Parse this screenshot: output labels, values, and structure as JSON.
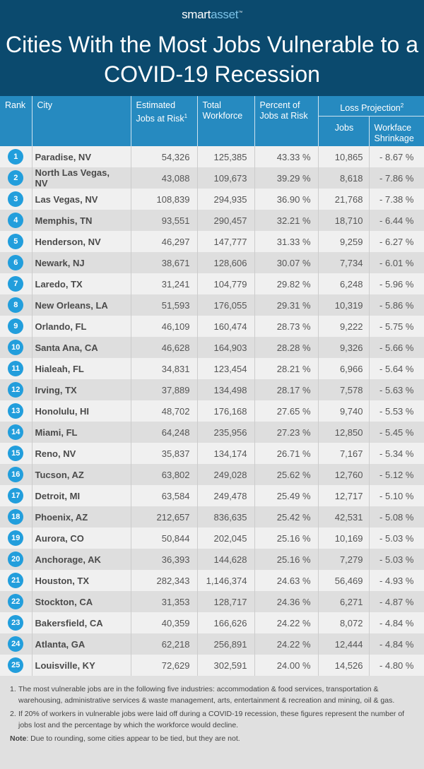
{
  "brand": {
    "left": "smart",
    "right": "asset",
    "tm": "™"
  },
  "title": "Cities With the Most Jobs Vulnerable to a COVID-19 Recession",
  "colors": {
    "header_bg": "#0b4a6e",
    "table_header_bg": "#268ac0",
    "rank_badge": "#229edc"
  },
  "columns": {
    "rank": "Rank",
    "city": "City",
    "est": "Estimated Jobs at Risk",
    "est_sup": "1",
    "total": "Total Workforce",
    "pct": "Percent of Jobs at Risk",
    "loss": "Loss Projection",
    "loss_sup": "2",
    "jobs": "Jobs",
    "shrink": "Workface Shrinkage"
  },
  "rows": [
    {
      "rank": "1",
      "city": "Paradise, NV",
      "est": "54,326",
      "total": "125,385",
      "pct": "43.33 %",
      "jobs": "10,865",
      "shrink": "- 8.67 %"
    },
    {
      "rank": "2",
      "city": "North Las Vegas, NV",
      "est": "43,088",
      "total": "109,673",
      "pct": "39.29 %",
      "jobs": "8,618",
      "shrink": "- 7.86 %"
    },
    {
      "rank": "3",
      "city": "Las Vegas, NV",
      "est": "108,839",
      "total": "294,935",
      "pct": "36.90 %",
      "jobs": "21,768",
      "shrink": "- 7.38 %"
    },
    {
      "rank": "4",
      "city": "Memphis, TN",
      "est": "93,551",
      "total": "290,457",
      "pct": "32.21 %",
      "jobs": "18,710",
      "shrink": "- 6.44 %"
    },
    {
      "rank": "5",
      "city": "Henderson, NV",
      "est": "46,297",
      "total": "147,777",
      "pct": "31.33 %",
      "jobs": "9,259",
      "shrink": "- 6.27 %"
    },
    {
      "rank": "6",
      "city": "Newark, NJ",
      "est": "38,671",
      "total": "128,606",
      "pct": "30.07 %",
      "jobs": "7,734",
      "shrink": "- 6.01 %"
    },
    {
      "rank": "7",
      "city": "Laredo, TX",
      "est": "31,241",
      "total": "104,779",
      "pct": "29.82 %",
      "jobs": "6,248",
      "shrink": "- 5.96 %"
    },
    {
      "rank": "8",
      "city": "New Orleans, LA",
      "est": "51,593",
      "total": "176,055",
      "pct": "29.31 %",
      "jobs": "10,319",
      "shrink": "- 5.86 %"
    },
    {
      "rank": "9",
      "city": "Orlando, FL",
      "est": "46,109",
      "total": "160,474",
      "pct": "28.73 %",
      "jobs": "9,222",
      "shrink": "- 5.75 %"
    },
    {
      "rank": "10",
      "city": "Santa Ana, CA",
      "est": "46,628",
      "total": "164,903",
      "pct": "28.28 %",
      "jobs": "9,326",
      "shrink": "- 5.66 %"
    },
    {
      "rank": "11",
      "city": "Hialeah, FL",
      "est": "34,831",
      "total": "123,454",
      "pct": "28.21 %",
      "jobs": "6,966",
      "shrink": "- 5.64 %"
    },
    {
      "rank": "12",
      "city": "Irving, TX",
      "est": "37,889",
      "total": "134,498",
      "pct": "28.17 %",
      "jobs": "7,578",
      "shrink": "- 5.63 %"
    },
    {
      "rank": "13",
      "city": "Honolulu, HI",
      "est": "48,702",
      "total": "176,168",
      "pct": "27.65 %",
      "jobs": "9,740",
      "shrink": "- 5.53 %"
    },
    {
      "rank": "14",
      "city": "Miami, FL",
      "est": "64,248",
      "total": "235,956",
      "pct": "27.23 %",
      "jobs": "12,850",
      "shrink": "- 5.45 %"
    },
    {
      "rank": "15",
      "city": "Reno, NV",
      "est": "35,837",
      "total": "134,174",
      "pct": "26.71 %",
      "jobs": "7,167",
      "shrink": "- 5.34 %"
    },
    {
      "rank": "16",
      "city": "Tucson, AZ",
      "est": "63,802",
      "total": "249,028",
      "pct": "25.62 %",
      "jobs": "12,760",
      "shrink": "- 5.12 %"
    },
    {
      "rank": "17",
      "city": "Detroit, MI",
      "est": "63,584",
      "total": "249,478",
      "pct": "25.49 %",
      "jobs": "12,717",
      "shrink": "- 5.10 %"
    },
    {
      "rank": "18",
      "city": "Phoenix, AZ",
      "est": "212,657",
      "total": "836,635",
      "pct": "25.42 %",
      "jobs": "42,531",
      "shrink": "- 5.08 %"
    },
    {
      "rank": "19",
      "city": "Aurora, CO",
      "est": "50,844",
      "total": "202,045",
      "pct": "25.16 %",
      "jobs": "10,169",
      "shrink": "- 5.03 %"
    },
    {
      "rank": "20",
      "city": "Anchorage, AK",
      "est": "36,393",
      "total": "144,628",
      "pct": "25.16 %",
      "jobs": "7,279",
      "shrink": "- 5.03 %"
    },
    {
      "rank": "21",
      "city": "Houston, TX",
      "est": "282,343",
      "total": "1,146,374",
      "pct": "24.63 %",
      "jobs": "56,469",
      "shrink": "- 4.93 %"
    },
    {
      "rank": "22",
      "city": "Stockton, CA",
      "est": "31,353",
      "total": "128,717",
      "pct": "24.36 %",
      "jobs": "6,271",
      "shrink": "- 4.87 %"
    },
    {
      "rank": "23",
      "city": "Bakersfield, CA",
      "est": "40,359",
      "total": "166,626",
      "pct": "24.22 %",
      "jobs": "8,072",
      "shrink": "- 4.84 %"
    },
    {
      "rank": "24",
      "city": "Atlanta, GA",
      "est": "62,218",
      "total": "256,891",
      "pct": "24.22 %",
      "jobs": "12,444",
      "shrink": "- 4.84 %"
    },
    {
      "rank": "25",
      "city": "Louisville, KY",
      "est": "72,629",
      "total": "302,591",
      "pct": "24.00 %",
      "jobs": "14,526",
      "shrink": "- 4.80 %"
    }
  ],
  "footnotes": [
    {
      "num": "1.",
      "text": "The most vulnerable jobs are in the following five industries: accommodation & food services, transportation & warehousing, administrative services & waste management, arts, entertainment & recreation and mining, oil & gas."
    },
    {
      "num": "2.",
      "text": "If 20% of workers in vulnerable jobs were laid off during a COVID-19 recession, these figures represent the number of jobs lost and the percentage by which the workforce would decline."
    }
  ],
  "note": {
    "label": "Note",
    "text": ": Due to rounding, some cities appear to be tied, but they are not."
  }
}
